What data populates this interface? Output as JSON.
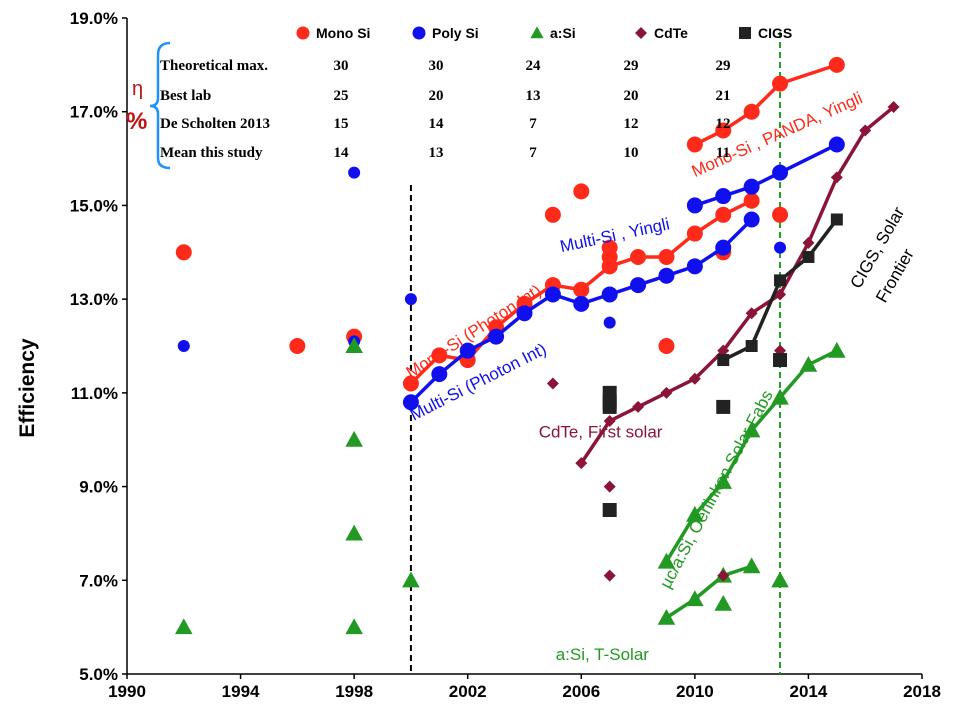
{
  "chart_data": {
    "type": "scatter",
    "ylabel": "Efficiency",
    "xlim": [
      1990,
      2018
    ],
    "ylim": [
      5.0,
      19.0
    ],
    "xticks": [
      "1990",
      "1994",
      "1998",
      "2002",
      "2006",
      "2010",
      "2014",
      "2018"
    ],
    "yticks": [
      "5.0%",
      "7.0%",
      "9.0%",
      "11.0%",
      "13.0%",
      "15.0%",
      "17.0%",
      "19.0%"
    ],
    "vlines": [
      {
        "x": 2000,
        "color": "#000000"
      },
      {
        "x": 2013,
        "color": "#22a022"
      }
    ],
    "legend": [
      {
        "name": "Mono Si",
        "color": "#ff2a1a",
        "marker": "circle"
      },
      {
        "name": "Poly Si",
        "color": "#1010ee",
        "marker": "circle"
      },
      {
        "name": "a:Si",
        "color": "#229922",
        "marker": "triangle"
      },
      {
        "name": "CdTe",
        "color": "#8b1538",
        "marker": "diamond"
      },
      {
        "name": "CIGS",
        "color": "#222222",
        "marker": "square"
      }
    ],
    "table": {
      "eta": "η",
      "pct": "%",
      "rows": [
        {
          "label": "Theoretical max.",
          "values": [
            "30",
            "30",
            "24",
            "29",
            "29"
          ]
        },
        {
          "label": "Best lab",
          "values": [
            "25",
            "20",
            "13",
            "20",
            "21"
          ]
        },
        {
          "label": "De Scholten 2013",
          "values": [
            "15",
            "14",
            "7",
            "12",
            "12"
          ]
        },
        {
          "label": "Mean this study",
          "values": [
            "14",
            "13",
            "7",
            "10",
            "11"
          ]
        }
      ]
    },
    "series": [
      {
        "key": "mono_pts",
        "legend": "Mono Si",
        "color": "#ff2a1a",
        "marker": "circle",
        "size": 8,
        "x": [
          1992,
          1996,
          1998,
          2005,
          2006,
          2007,
          2007,
          2009,
          2011,
          2013
        ],
        "y": [
          14.0,
          12.0,
          12.2,
          14.8,
          15.3,
          14.1,
          13.9,
          12.0,
          14.0,
          14.8
        ]
      },
      {
        "key": "mono_line1",
        "color": "#ff2a1a",
        "marker": "circle",
        "size": 8,
        "line": true,
        "x": [
          2000,
          2001,
          2002,
          2003,
          2004,
          2005,
          2006,
          2007,
          2008,
          2009,
          2010,
          2011,
          2012
        ],
        "y": [
          11.2,
          11.8,
          11.7,
          12.4,
          12.9,
          13.3,
          13.2,
          13.7,
          13.9,
          13.9,
          14.4,
          14.8,
          15.1
        ]
      },
      {
        "key": "mono_line2",
        "color": "#ff2a1a",
        "marker": "circle",
        "size": 8,
        "line": true,
        "x": [
          2010,
          2011,
          2012,
          2013,
          2015
        ],
        "y": [
          16.3,
          16.6,
          17.0,
          17.6,
          18.0
        ]
      },
      {
        "key": "poly_pts",
        "legend": "Poly Si",
        "color": "#1010ee",
        "marker": "circle",
        "size": 6,
        "x": [
          1992,
          1998,
          1998,
          2000,
          2007,
          2011,
          2013
        ],
        "y": [
          12.0,
          15.7,
          12.1,
          13.0,
          12.5,
          14.1,
          14.1
        ]
      },
      {
        "key": "poly_line1",
        "color": "#1010ee",
        "marker": "circle",
        "size": 8,
        "line": true,
        "x": [
          2000,
          2001,
          2002,
          2003,
          2004,
          2005,
          2006,
          2007,
          2008,
          2009,
          2010,
          2011,
          2012
        ],
        "y": [
          10.8,
          11.4,
          11.9,
          12.2,
          12.7,
          13.1,
          12.9,
          13.1,
          13.3,
          13.5,
          13.7,
          14.1,
          14.7
        ]
      },
      {
        "key": "poly_line2",
        "color": "#1010ee",
        "marker": "circle",
        "size": 8,
        "line": true,
        "x": [
          2010,
          2011,
          2012,
          2013,
          2015
        ],
        "y": [
          15.0,
          15.2,
          15.4,
          15.7,
          16.3
        ]
      },
      {
        "key": "asi_pts",
        "legend": "a:Si",
        "color": "#229922",
        "marker": "triangle",
        "size": 8,
        "x": [
          1992,
          1998,
          1998,
          1998,
          1998,
          2000,
          2011,
          2013
        ],
        "y": [
          6.0,
          12.0,
          10.0,
          8.0,
          6.0,
          7.0,
          6.5,
          7.0
        ]
      },
      {
        "key": "asi_line1",
        "color": "#229922",
        "marker": "triangle",
        "size": 8,
        "line": true,
        "x": [
          2009,
          2010,
          2011,
          2012
        ],
        "y": [
          6.2,
          6.6,
          7.1,
          7.3
        ]
      },
      {
        "key": "asi_line2",
        "color": "#229922",
        "marker": "triangle",
        "size": 8,
        "line": true,
        "x": [
          2009,
          2010,
          2011,
          2012,
          2013,
          2014,
          2015
        ],
        "y": [
          7.4,
          8.4,
          9.1,
          10.2,
          10.9,
          11.6,
          11.9
        ]
      },
      {
        "key": "cdte_pts",
        "legend": "CdTe",
        "color": "#8b1538",
        "marker": "diamond",
        "size": 6,
        "x": [
          2005,
          2007,
          2007,
          2011,
          2013
        ],
        "y": [
          11.2,
          9.0,
          7.1,
          7.1,
          11.9
        ]
      },
      {
        "key": "cdte_line",
        "color": "#8b1538",
        "marker": "diamond",
        "size": 6,
        "line": true,
        "x": [
          2006,
          2007,
          2008,
          2009,
          2010,
          2011,
          2012,
          2013,
          2014,
          2015,
          2016,
          2017
        ],
        "y": [
          9.5,
          10.4,
          10.7,
          11.0,
          11.3,
          11.9,
          12.7,
          13.1,
          14.2,
          15.6,
          16.6,
          17.1
        ]
      },
      {
        "key": "cigs_pts",
        "legend": "CIGS",
        "color": "#222222",
        "marker": "square",
        "size": 7,
        "x": [
          2007,
          2007,
          2007,
          2007,
          2011,
          2013
        ],
        "y": [
          11.0,
          10.8,
          10.7,
          8.5,
          10.7,
          11.7
        ]
      },
      {
        "key": "cigs_line",
        "color": "#222222",
        "marker": "square",
        "size": 6,
        "line": true,
        "x": [
          2011,
          2012,
          2013,
          2014,
          2015
        ],
        "y": [
          11.7,
          12.0,
          13.4,
          13.9,
          14.7
        ]
      }
    ],
    "annotations": [
      {
        "text": "Mono-Si , PANDA, Yingli",
        "color": "#ff2a1a",
        "x": 2010.0,
        "y": 15.6,
        "rotate": -24
      },
      {
        "text": "Multi-Si , Yingli",
        "color": "#1010ee",
        "x": 2005.3,
        "y": 14.0,
        "rotate": -12
      },
      {
        "text": "Mono-Si (Photon Int)",
        "color": "#ff2a1a",
        "x": 2000.0,
        "y": 11.3,
        "rotate": -33
      },
      {
        "text": "Multi-Si (Photon Int)",
        "color": "#1010ee",
        "x": 2000.1,
        "y": 10.4,
        "rotate": -27
      },
      {
        "text": "CdTe, First solar",
        "color": "#8b1538",
        "x": 2004.5,
        "y": 10.05,
        "rotate": 0
      },
      {
        "text": "CIGS, Solar",
        "color": "#000000",
        "x": 2015.8,
        "y": 13.2,
        "rotate": -60
      },
      {
        "text": "Frontier",
        "color": "#000000",
        "x": 2016.7,
        "y": 12.9,
        "rotate": -60
      },
      {
        "text": "µc/a:Si, Oerlinkon Solar Fabs",
        "color": "#229922",
        "x": 2009.1,
        "y": 6.8,
        "rotate": -62
      },
      {
        "text": "a:Si, T-Solar",
        "color": "#229922",
        "x": 2005.1,
        "y": 5.3,
        "rotate": 0
      }
    ]
  }
}
